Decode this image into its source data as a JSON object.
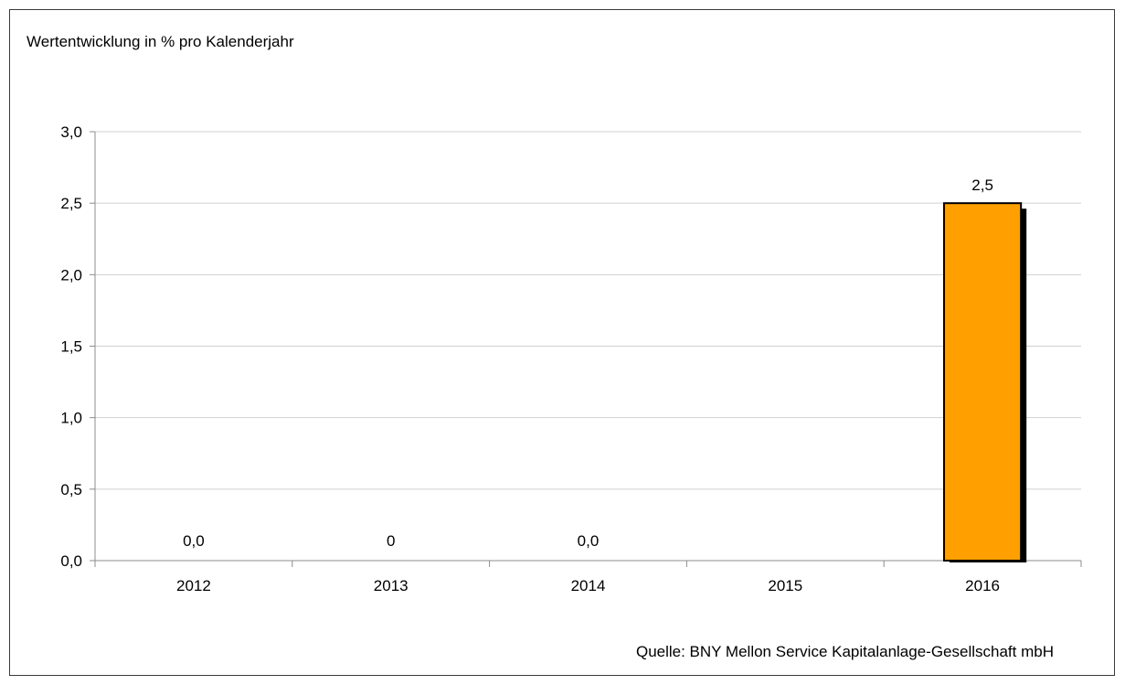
{
  "chart_data": {
    "type": "bar",
    "title": "Wertentwicklung in % pro Kalenderjahr",
    "categories": [
      "2012",
      "2013",
      "2014",
      "2015",
      "2016"
    ],
    "values": [
      0.0,
      0.0,
      0.0,
      null,
      2.5
    ],
    "data_labels": [
      "0,0",
      "0",
      "0,0",
      "",
      "2,5"
    ],
    "ylim": [
      0,
      3.0
    ],
    "yticks": [
      0.0,
      0.5,
      1.0,
      1.5,
      2.0,
      2.5,
      3.0
    ],
    "ytick_labels": [
      "0,0",
      "0,5",
      "1,0",
      "1,5",
      "2,0",
      "2,5",
      "3,0"
    ],
    "xlabel": "",
    "ylabel": "",
    "grid": true,
    "legend": "none",
    "bar_color": "#ffa000",
    "bar_shadow_color": "#000000",
    "grid_color": "#d0d0d0"
  },
  "source_note": "Quelle: BNY Mellon Service Kapitalanlage-Gesellschaft mbH"
}
